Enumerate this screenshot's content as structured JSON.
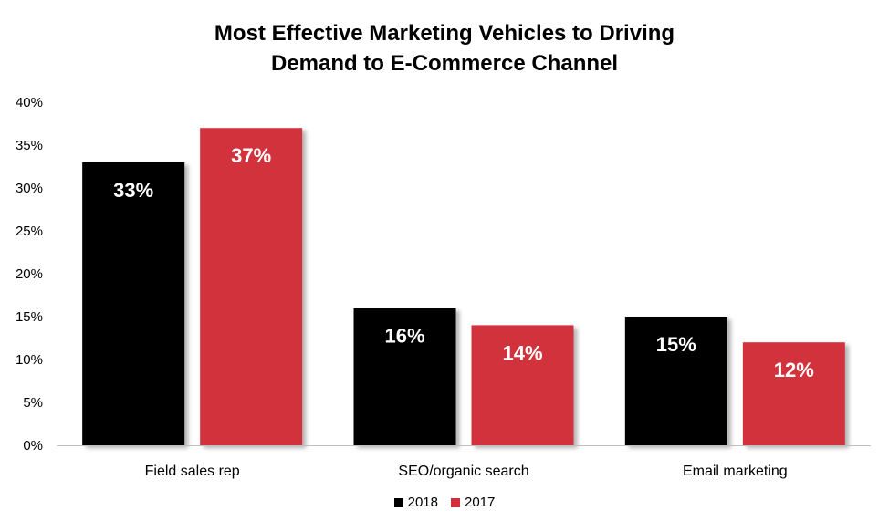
{
  "chart_data": {
    "type": "bar",
    "title_line1": "Most Effective Marketing Vehicles to Driving",
    "title_line2": "Demand to E-Commerce Channel",
    "categories": [
      "Field sales rep",
      "SEO/organic search",
      "Email marketing"
    ],
    "series": [
      {
        "name": "2018",
        "color": "#000000",
        "values": [
          33,
          16,
          15
        ],
        "labels": [
          "33%",
          "16%",
          "15%"
        ]
      },
      {
        "name": "2017",
        "color": "#d1303a",
        "values": [
          37,
          14,
          12
        ],
        "labels": [
          "37%",
          "14%",
          "12%"
        ]
      }
    ],
    "yticks": [
      "0%",
      "5%",
      "10%",
      "15%",
      "20%",
      "25%",
      "30%",
      "35%",
      "40%"
    ],
    "ylim": [
      0,
      40
    ],
    "ytick_step": 5,
    "grid": false,
    "legend_position": "bottom"
  }
}
